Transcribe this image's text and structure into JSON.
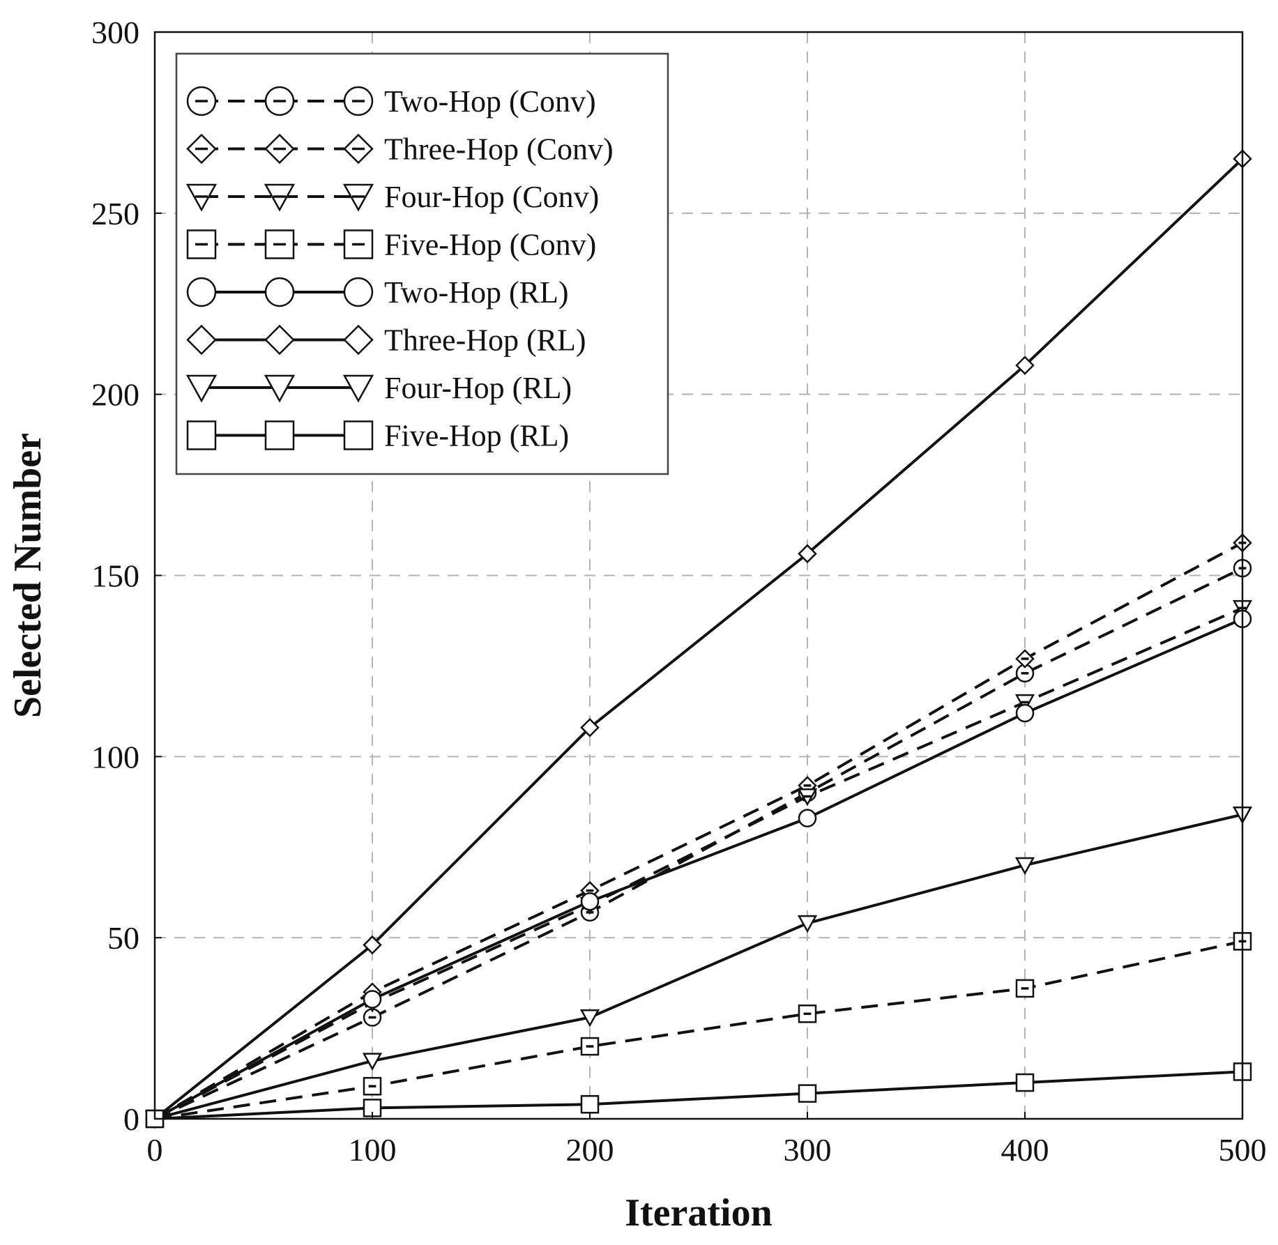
{
  "chart_data": {
    "type": "line",
    "title": "",
    "xlabel": "Iteration",
    "ylabel": "Selected Number",
    "xlim": [
      0,
      500
    ],
    "ylim": [
      0,
      300
    ],
    "xticks": [
      0,
      100,
      200,
      300,
      400,
      500
    ],
    "yticks": [
      0,
      50,
      100,
      150,
      200,
      250,
      300
    ],
    "grid": true,
    "legend_position": "top-left",
    "x": [
      0,
      100,
      200,
      300,
      400,
      500
    ],
    "series": [
      {
        "name": "Two-Hop (Conv)",
        "marker": "circle",
        "style": "dashed",
        "values": [
          0,
          28,
          57,
          90,
          123,
          152
        ]
      },
      {
        "name": "Three-Hop (Conv)",
        "marker": "diamond",
        "style": "dashed",
        "values": [
          0,
          35,
          63,
          92,
          127,
          159
        ]
      },
      {
        "name": "Four-Hop (Conv)",
        "marker": "triangle-down",
        "style": "dashed",
        "values": [
          0,
          32,
          59,
          89,
          115,
          141
        ]
      },
      {
        "name": "Five-Hop (Conv)",
        "marker": "square",
        "style": "dashed",
        "values": [
          0,
          9,
          20,
          29,
          36,
          49
        ]
      },
      {
        "name": "Two-Hop (RL)",
        "marker": "circle",
        "style": "solid",
        "values": [
          0,
          33,
          60,
          83,
          112,
          138
        ]
      },
      {
        "name": "Three-Hop (RL)",
        "marker": "diamond",
        "style": "solid",
        "values": [
          0,
          48,
          108,
          156,
          208,
          265
        ]
      },
      {
        "name": "Four-Hop (RL)",
        "marker": "triangle-down",
        "style": "solid",
        "values": [
          0,
          16,
          28,
          54,
          70,
          84
        ]
      },
      {
        "name": "Five-Hop (RL)",
        "marker": "square",
        "style": "solid",
        "values": [
          0,
          3,
          4,
          7,
          10,
          13
        ]
      }
    ]
  }
}
